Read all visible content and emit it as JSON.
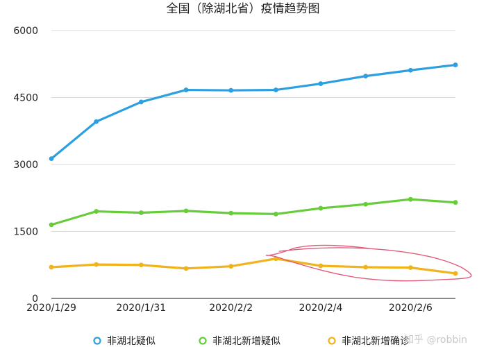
{
  "chart_data": {
    "type": "line",
    "title": "全国（除湖北省）疫情趋势图",
    "x": [
      "2020/1/29",
      "2020/1/30",
      "2020/1/31",
      "2020/2/1",
      "2020/2/2",
      "2020/2/3",
      "2020/2/4",
      "2020/2/5",
      "2020/2/6",
      "2020/2/7"
    ],
    "x_tick_labels": [
      "2020/1/29",
      "2020/1/31",
      "2020/2/2",
      "2020/2/4",
      "2020/2/6"
    ],
    "ylim": [
      0,
      6000
    ],
    "y_tick_labels": [
      "0",
      "1500",
      "3000",
      "4500",
      "6000"
    ],
    "y_ticks": [
      0,
      1500,
      3000,
      4500,
      6000
    ],
    "grid": true,
    "legend_position": "bottom",
    "series": [
      {
        "name": "非湖北疑似",
        "color": "#2b9fe0",
        "values": [
          3130,
          3960,
          4400,
          4670,
          4660,
          4670,
          4810,
          4980,
          5110,
          5230
        ]
      },
      {
        "name": "非湖北新增疑似",
        "color": "#66cc3a",
        "values": [
          1650,
          1950,
          1920,
          1960,
          1910,
          1890,
          2020,
          2110,
          2220,
          2150
        ]
      },
      {
        "name": "非湖北新增确诊",
        "color": "#f0b41a",
        "values": [
          700,
          760,
          750,
          670,
          720,
          890,
          730,
          700,
          690,
          560
        ]
      }
    ],
    "annotation": {
      "type": "hand-drawn-ellipse",
      "color": "#e05c7a",
      "covers_x_from": "2020/2/3",
      "covers_x_to": "2020/2/7"
    }
  },
  "watermark": "知乎 @robbin"
}
